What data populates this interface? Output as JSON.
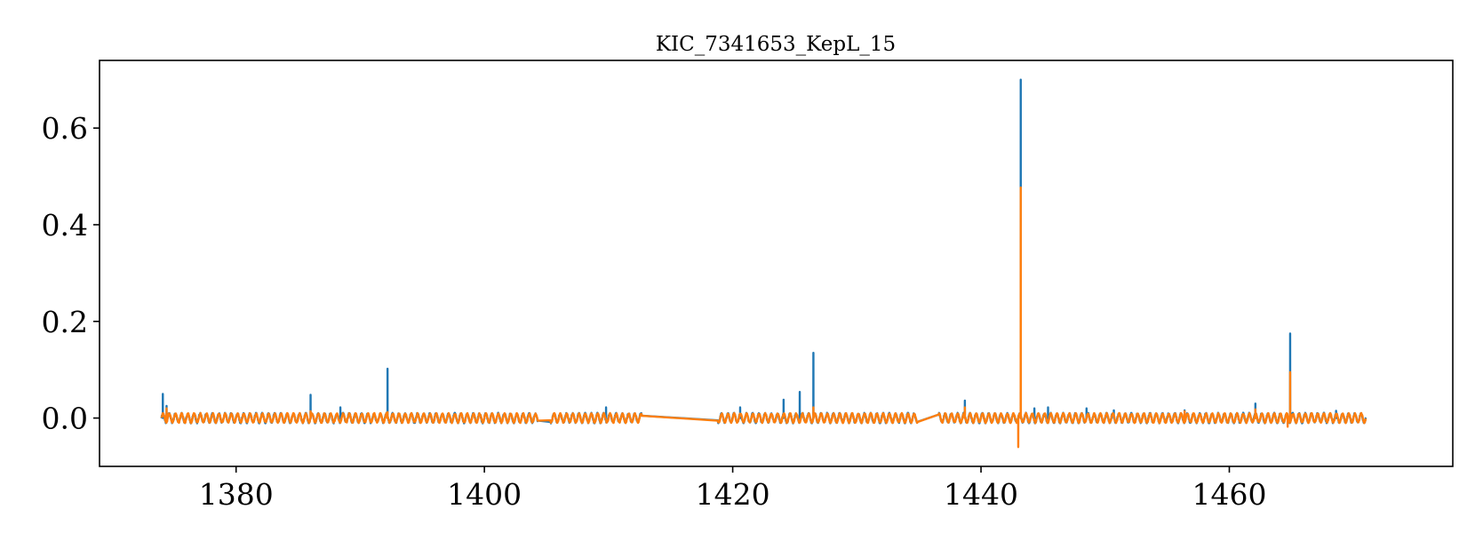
{
  "chart_data": {
    "type": "line",
    "title": "KIC_7341653_KepL_15",
    "xlabel": "",
    "ylabel": "",
    "xlim": [
      1369,
      1478
    ],
    "ylim": [
      -0.1,
      0.74
    ],
    "x_ticks": [
      1380,
      1400,
      1420,
      1440,
      1460
    ],
    "x_tick_labels": [
      "1380",
      "1400",
      "1420",
      "1440",
      "1460"
    ],
    "y_ticks": [
      0.0,
      0.2,
      0.4,
      0.6
    ],
    "y_tick_labels": [
      "0.0",
      "0.2",
      "0.4",
      "0.6"
    ],
    "grid": false,
    "legend": "none",
    "oscillation_period_days": 0.5,
    "oscillation_amplitude": 0.009,
    "data_segments": [
      [
        1374.0,
        1404.3
      ],
      [
        1405.3,
        1412.7
      ],
      [
        1418.8,
        1434.9
      ],
      [
        1436.6,
        1471.0
      ]
    ],
    "series": [
      {
        "color": "#1f77b4",
        "flare_peaks": [
          [
            1374.1,
            0.05
          ],
          [
            1374.4,
            0.025
          ],
          [
            1386.0,
            0.048
          ],
          [
            1388.4,
            0.022
          ],
          [
            1392.2,
            0.102
          ],
          [
            1409.8,
            0.022
          ],
          [
            1420.6,
            0.022
          ],
          [
            1424.1,
            0.038
          ],
          [
            1425.4,
            0.054
          ],
          [
            1426.5,
            0.135
          ],
          [
            1438.7,
            0.036
          ],
          [
            1443.2,
            0.7
          ],
          [
            1444.3,
            0.02
          ],
          [
            1445.4,
            0.022
          ],
          [
            1448.5,
            0.02
          ],
          [
            1450.7,
            0.016
          ],
          [
            1456.4,
            0.016
          ],
          [
            1462.1,
            0.03
          ],
          [
            1464.9,
            0.175
          ],
          [
            1468.6,
            0.015
          ]
        ]
      },
      {
        "color": "#ff7f0e",
        "flare_peaks": [
          [
            1374.4,
            0.02
          ],
          [
            1386.0,
            0.014
          ],
          [
            1392.2,
            0.012
          ],
          [
            1426.5,
            0.022
          ],
          [
            1438.7,
            0.022
          ],
          [
            1443.0,
            -0.06
          ],
          [
            1443.2,
            0.477
          ],
          [
            1456.4,
            0.014
          ],
          [
            1462.1,
            0.018
          ],
          [
            1464.7,
            -0.018
          ],
          [
            1464.9,
            0.095
          ]
        ]
      }
    ]
  }
}
